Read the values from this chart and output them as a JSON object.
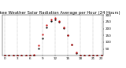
{
  "title": "Milwaukee Weather Solar Radiation Average per Hour (24 Hours)",
  "hours": [
    0,
    1,
    2,
    3,
    4,
    5,
    6,
    7,
    8,
    9,
    10,
    11,
    12,
    13,
    14,
    15,
    16,
    17,
    18,
    19,
    20,
    21,
    22,
    23
  ],
  "series1": [
    0,
    0,
    0,
    0,
    0,
    0,
    0,
    0,
    55,
    130,
    210,
    255,
    265,
    250,
    205,
    150,
    80,
    20,
    0,
    0,
    0,
    0,
    0,
    0
  ],
  "series2": [
    0,
    0,
    0,
    0,
    0,
    0,
    0,
    10,
    75,
    155,
    225,
    265,
    280,
    255,
    210,
    150,
    85,
    25,
    2,
    0,
    0,
    0,
    0,
    0
  ],
  "color1": "#000000",
  "color2": "#cc0000",
  "ylim": [
    0,
    300
  ],
  "ytick_vals": [
    50,
    100,
    150,
    200,
    250,
    300
  ],
  "ytick_labels": [
    "50",
    "100",
    "150",
    "200",
    "250",
    "300"
  ],
  "xtick_vals": [
    0,
    3,
    6,
    9,
    12,
    15,
    18,
    21,
    23
  ],
  "xtick_labels": [
    "0",
    "3",
    "6",
    "9",
    "12",
    "15",
    "18",
    "21",
    "23"
  ],
  "background": "#ffffff",
  "grid_color": "#888888",
  "title_fontsize": 3.8,
  "tick_fontsize": 3.0,
  "marker_size": 1.2
}
